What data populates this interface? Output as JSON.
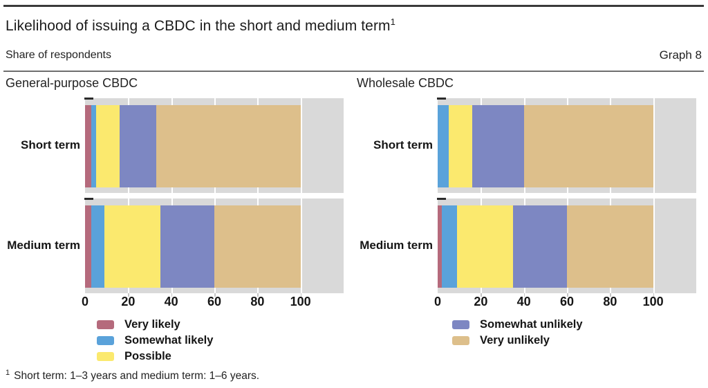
{
  "header": {
    "title": "Likelihood of issuing a CBDC in the short and medium term",
    "title_sup": "1",
    "subtitle": "Share of respondents",
    "graph_label": "Graph 8"
  },
  "colors": {
    "very_likely": "#b56a7c",
    "somewhat_likely": "#5aa2da",
    "possible": "#fbe96e",
    "somewhat_unlikely": "#7d87c2",
    "very_unlikely": "#ddbf8b",
    "plot_background": "#d9d9d9",
    "gridline": "#ffffff"
  },
  "chart_data": [
    {
      "type": "bar",
      "orientation": "horizontal",
      "stacked": true,
      "title": "General-purpose CBDC",
      "categories": [
        "Short term",
        "Medium term"
      ],
      "series": [
        {
          "name": "Very likely",
          "color": "#b56a7c",
          "values": [
            3,
            3
          ]
        },
        {
          "name": "Somewhat likely",
          "color": "#5aa2da",
          "values": [
            2,
            6
          ]
        },
        {
          "name": "Possible",
          "color": "#fbe96e",
          "values": [
            11,
            26
          ]
        },
        {
          "name": "Somewhat unlikely",
          "color": "#7d87c2",
          "values": [
            17,
            25
          ]
        },
        {
          "name": "Very unlikely",
          "color": "#ddbf8b",
          "values": [
            67,
            40
          ]
        }
      ],
      "xlim": [
        0,
        120
      ],
      "xticks": [
        0,
        20,
        40,
        60,
        80,
        100
      ],
      "xlabel": "",
      "ylabel": "",
      "grid": true,
      "legend_position": "below"
    },
    {
      "type": "bar",
      "orientation": "horizontal",
      "stacked": true,
      "title": "Wholesale CBDC",
      "categories": [
        "Short term",
        "Medium term"
      ],
      "series": [
        {
          "name": "Very likely",
          "color": "#b56a7c",
          "values": [
            0,
            2
          ]
        },
        {
          "name": "Somewhat likely",
          "color": "#5aa2da",
          "values": [
            5,
            7
          ]
        },
        {
          "name": "Possible",
          "color": "#fbe96e",
          "values": [
            11,
            26
          ]
        },
        {
          "name": "Somewhat unlikely",
          "color": "#7d87c2",
          "values": [
            24,
            25
          ]
        },
        {
          "name": "Very unlikely",
          "color": "#ddbf8b",
          "values": [
            60,
            40
          ]
        }
      ],
      "xlim": [
        0,
        120
      ],
      "xticks": [
        0,
        20,
        40,
        60,
        80,
        100
      ],
      "xlabel": "",
      "ylabel": "",
      "grid": true,
      "legend_position": "below"
    }
  ],
  "legend": {
    "left": [
      "Very likely",
      "Somewhat likely",
      "Possible"
    ],
    "right": [
      "Somewhat unlikely",
      "Very unlikely"
    ]
  },
  "footnote": {
    "marker": "1",
    "text": "Short term: 1–3 years and medium term: 1–6 years."
  }
}
